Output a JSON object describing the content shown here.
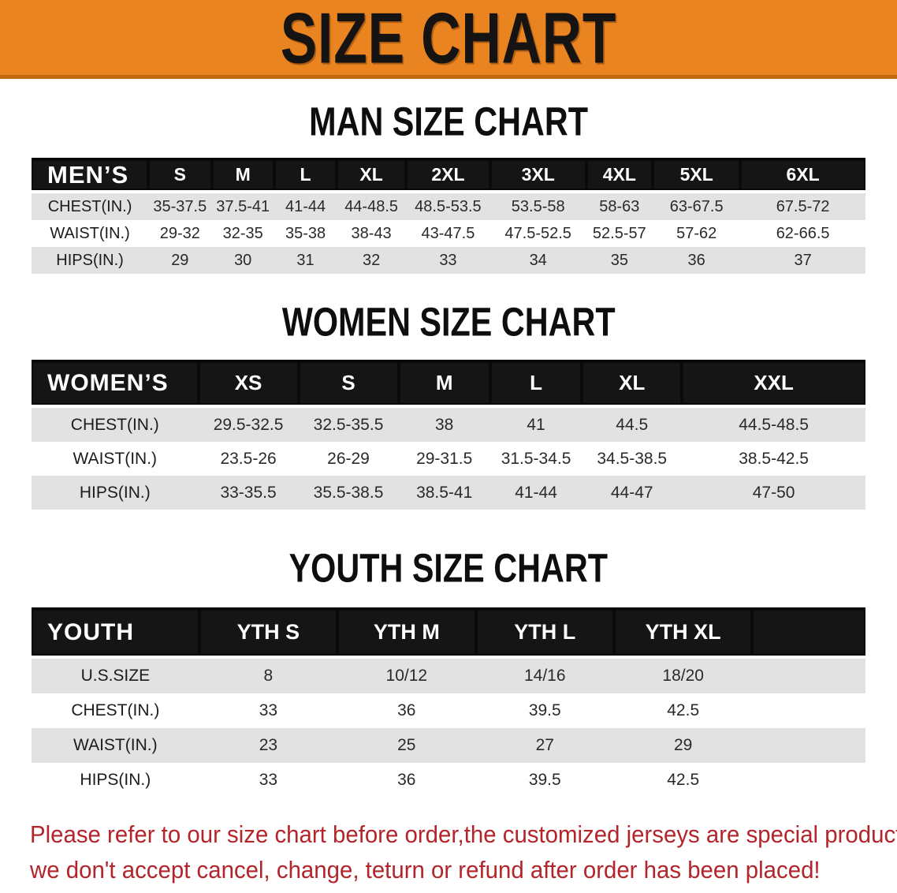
{
  "banner": {
    "title": "SIZE CHART",
    "bg_color": "#EA8420",
    "border_color": "#C1690F",
    "text_color": "#161413"
  },
  "colors": {
    "header_bar": "#151515",
    "stripe_row": "#E2E2E2",
    "disclaimer_text": "#B3252B"
  },
  "sections": [
    {
      "heading": "MAN SIZE CHART",
      "table": {
        "name": "men",
        "label": "MEN’S",
        "columns": [
          "S",
          "M",
          "L",
          "XL",
          "2XL",
          "3XL",
          "4XL",
          "5XL",
          "6XL"
        ],
        "rows": [
          {
            "label": "CHEST(IN.)",
            "values": [
              "35-37.5",
              "37.5-41",
              "41-44",
              "44-48.5",
              "48.5-53.5",
              "53.5-58",
              "58-63",
              "63-67.5",
              "67.5-72"
            ]
          },
          {
            "label": "WAIST(IN.)",
            "values": [
              "29-32",
              "32-35",
              "35-38",
              "38-43",
              "43-47.5",
              "47.5-52.5",
              "52.5-57",
              "57-62",
              "62-66.5"
            ]
          },
          {
            "label": "HIPS(IN.)",
            "values": [
              "29",
              "30",
              "31",
              "32",
              "33",
              "34",
              "35",
              "36",
              "37"
            ]
          }
        ]
      }
    },
    {
      "heading": "WOMEN SIZE CHART",
      "table": {
        "name": "women",
        "label": "WOMEN’S",
        "columns": [
          "XS",
          "S",
          "M",
          "L",
          "XL",
          "XXL"
        ],
        "rows": [
          {
            "label": "CHEST(IN.)",
            "values": [
              "29.5-32.5",
              "32.5-35.5",
              "38",
              "41",
              "44.5",
              "44.5-48.5"
            ]
          },
          {
            "label": "WAIST(IN.)",
            "values": [
              "23.5-26",
              "26-29",
              "29-31.5",
              "31.5-34.5",
              "34.5-38.5",
              "38.5-42.5"
            ]
          },
          {
            "label": "HIPS(IN.)",
            "values": [
              "33-35.5",
              "35.5-38.5",
              "38.5-41",
              "41-44",
              "44-47",
              "47-50"
            ]
          }
        ]
      }
    },
    {
      "heading": "YOUTH SIZE CHART",
      "table": {
        "name": "youth",
        "label": "YOUTH",
        "columns": [
          "YTH S",
          "YTH M",
          "YTH L",
          "YTH XL"
        ],
        "rows": [
          {
            "label": "U.S.SIZE",
            "values": [
              "8",
              "10/12",
              "14/16",
              "18/20"
            ]
          },
          {
            "label": "CHEST(IN.)",
            "values": [
              "33",
              "36",
              "39.5",
              "42.5"
            ]
          },
          {
            "label": "WAIST(IN.)",
            "values": [
              "23",
              "25",
              "27",
              "29"
            ]
          },
          {
            "label": "HIPS(IN.)",
            "values": [
              "33",
              "36",
              "39.5",
              "42.5"
            ]
          }
        ]
      }
    }
  ],
  "disclaimer": {
    "line1": "Please refer to our size chart before order,the customized jerseys are special products,",
    "line2": "we don't accept cancel, change, teturn or refund after order has been placed!"
  }
}
